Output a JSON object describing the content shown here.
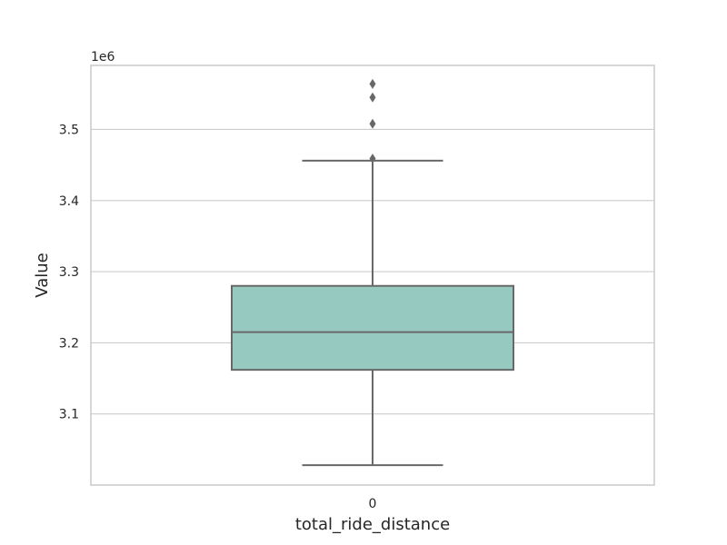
{
  "chart_data": {
    "type": "box",
    "categories": [
      "0"
    ],
    "xlabel": "total_ride_distance",
    "ylabel": "Value",
    "y_offset_label": "1e6",
    "y_scale_factor": 1000000,
    "ylim": [
      3000000,
      3590000
    ],
    "yticks": [
      3100000,
      3200000,
      3300000,
      3400000,
      3500000
    ],
    "ytick_labels": [
      "3.1",
      "3.2",
      "3.3",
      "3.4",
      "3.5"
    ],
    "grid": true,
    "box_color": "#96cac1",
    "line_color": "#686868",
    "boxes": [
      {
        "category": "0",
        "whisker_low": 3028000,
        "q1": 3162000,
        "median": 3215000,
        "q3": 3280000,
        "whisker_high": 3456000,
        "outliers": [
          3459000,
          3508000,
          3545000,
          3564000
        ]
      }
    ]
  }
}
